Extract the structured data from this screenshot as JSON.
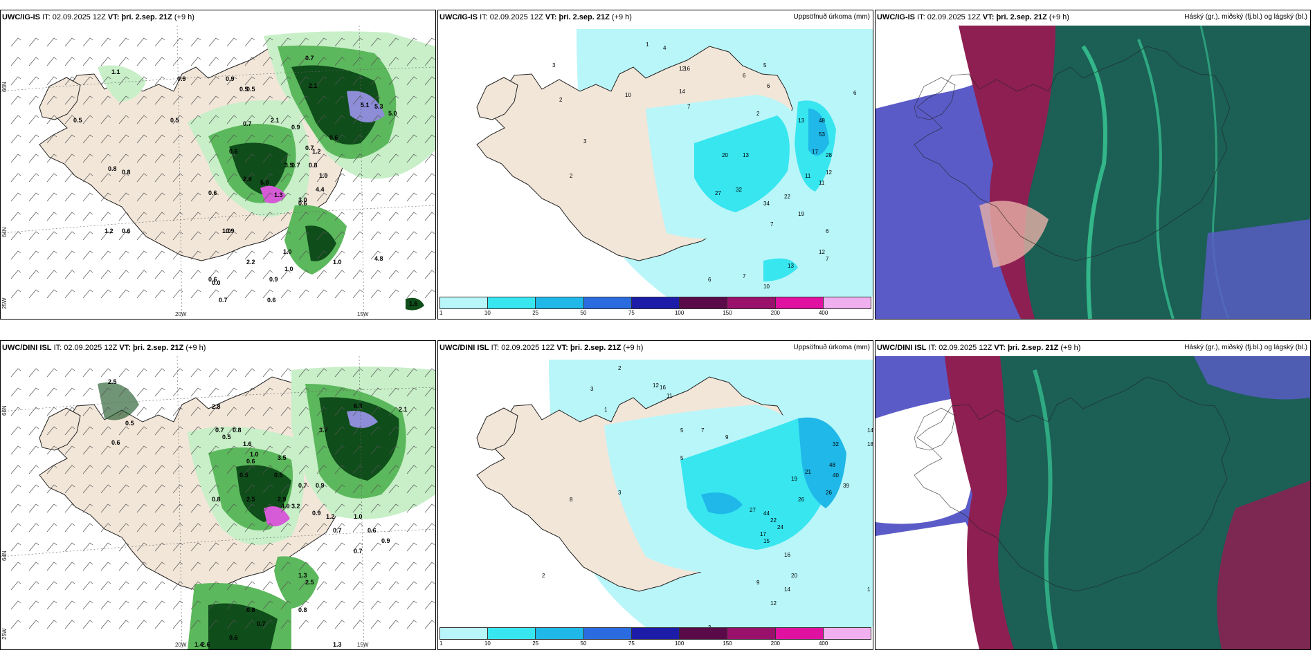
{
  "colors": {
    "land": "#f2e6d9",
    "sea": "#ffffff",
    "precip_light": "#c8efc8",
    "precip_mid": "#5cb85c",
    "precip_dark": "#0f4d1a",
    "precip_heavy": "#d65bd6",
    "accum_1": "#b9f6f9",
    "accum_10": "#38e6f0",
    "accum_25": "#1fb8e8",
    "cloud_high": "#1b5f55",
    "cloud_mid": "#8e1f52",
    "cloud_low": "#5b5bc8"
  },
  "panels": {
    "p1": {
      "model": "UWC/IG-IS",
      "it_label": "IT:",
      "it": "02.09.2025 12Z",
      "vt_label": "VT:",
      "vt": "þri. 2.sep. 21Z",
      "lead": "(+9 h)",
      "axis": {
        "lat66": "66N",
        "lat64": "64N",
        "lon20": "20W",
        "lon15": "15W",
        "lon25": "25W"
      },
      "labels": [
        "0.9",
        "0.7",
        "1.1",
        "0.5",
        "0.8",
        "0.5",
        "0.9",
        "2.1",
        "0.5",
        "0.7",
        "0.9",
        "5.1",
        "5.3",
        "5.0",
        "0.7",
        "0.8",
        "0.6",
        "1.2",
        "0.6",
        "2.1",
        "0.7",
        "3.5",
        "0.8",
        "0.6",
        "2.9",
        "1.0",
        "0.5",
        "5.0",
        "4.4",
        "3.0",
        "1.0",
        "0.9",
        "2.2",
        "1.0",
        "0.6",
        "4.8",
        "1.0",
        "0.9",
        "0.6",
        "0.7",
        "0.6",
        "1.2",
        "1.3",
        "1.0",
        "0.0",
        "0.6",
        "1.6"
      ]
    },
    "p2": {
      "model": "UWC/IG-IS",
      "it_label": "IT:",
      "it": "02.09.2025 12Z",
      "vt_label": "VT:",
      "vt": "þri. 2.sep. 21Z",
      "lead": "(+9 h)",
      "title": "Uppsöfnuð úrkoma (mm)",
      "labels": [
        "1",
        "4",
        "3",
        "2",
        "3",
        "2",
        "10",
        "12",
        "16",
        "14",
        "7",
        "6",
        "6",
        "2",
        "5",
        "13",
        "48",
        "53",
        "20",
        "13",
        "27",
        "32",
        "34",
        "22",
        "19",
        "11",
        "11",
        "17",
        "28",
        "12",
        "10",
        "7",
        "6",
        "3",
        "2",
        "7",
        "13",
        "12",
        "7",
        "6",
        "2",
        "3",
        "6",
        "2"
      ]
    },
    "p3": {
      "model": "UWC/IG-IS",
      "it_label": "IT:",
      "it": "02.09.2025 12Z",
      "vt_label": "VT:",
      "vt": "þri. 2.sep. 21Z",
      "lead": "(+9 h)",
      "title": "Háský (gr.), miðský (fj.bl.) og lágský (bl.)"
    },
    "p4": {
      "model": "UWC/DINI ISL",
      "it_label": "IT:",
      "it": "02.09.2025 12Z",
      "vt_label": "VT:",
      "vt": "þri. 2.sep. 21Z",
      "lead": "(+9 h)",
      "axis": {
        "lat66": "66N",
        "lat64": "64N",
        "lon20": "20W",
        "lon15": "15W",
        "lon25": "25W"
      },
      "labels": [
        "2.5",
        "0.5",
        "0.6",
        "2.8",
        "6.3",
        "0.7",
        "0.8",
        "3.7",
        "2.1",
        "0.5",
        "1.6",
        "1.0",
        "3.5",
        "0.6",
        "0.5",
        "0.5",
        "0.7",
        "0.9",
        "0.8",
        "2.5",
        "2.9",
        "4.6",
        "3.2",
        "0.9",
        "1.2",
        "0.7",
        "1.0",
        "0.6",
        "0.9",
        "0.7",
        "2.5",
        "1.3",
        "0.8",
        "0.7",
        "0.8",
        "1.4",
        "2.6",
        "0.6",
        "1.3"
      ]
    },
    "p5": {
      "model": "UWC/DINI ISL",
      "it_label": "IT:",
      "it": "02.09.2025 12Z",
      "vt_label": "VT:",
      "vt": "þri. 2.sep. 21Z",
      "lead": "(+9 h)",
      "title": "Uppsöfnuð úrkoma (mm)",
      "labels": [
        "2",
        "3",
        "1",
        "12",
        "16",
        "11",
        "5",
        "7",
        "9",
        "14",
        "18",
        "32",
        "48",
        "40",
        "39",
        "26",
        "21",
        "19",
        "26",
        "44",
        "27",
        "22",
        "24",
        "17",
        "15",
        "16",
        "20",
        "14",
        "12",
        "9",
        "10",
        "3",
        "2",
        "1",
        "10",
        "5",
        "3",
        "2",
        "8",
        "1"
      ]
    },
    "p6": {
      "model": "UWC/DINI ISL",
      "it_label": "IT:",
      "it": "02.09.2025 12Z",
      "vt_label": "VT:",
      "vt": "þri. 2.sep. 21Z",
      "lead": "(+9 h)",
      "title": "Háský (gr.), miðský (fj.bl.) og lágský (bl.)"
    }
  },
  "colorbar": {
    "ticks": [
      "1",
      "10",
      "25",
      "50",
      "75",
      "100",
      "150",
      "200",
      "400"
    ],
    "colors": [
      "#b9f6f9",
      "#38e6f0",
      "#1fb8e8",
      "#2a6ce0",
      "#1c1ca8",
      "#5a0a48",
      "#99116b",
      "#e010a0",
      "#f0b0f0"
    ]
  }
}
